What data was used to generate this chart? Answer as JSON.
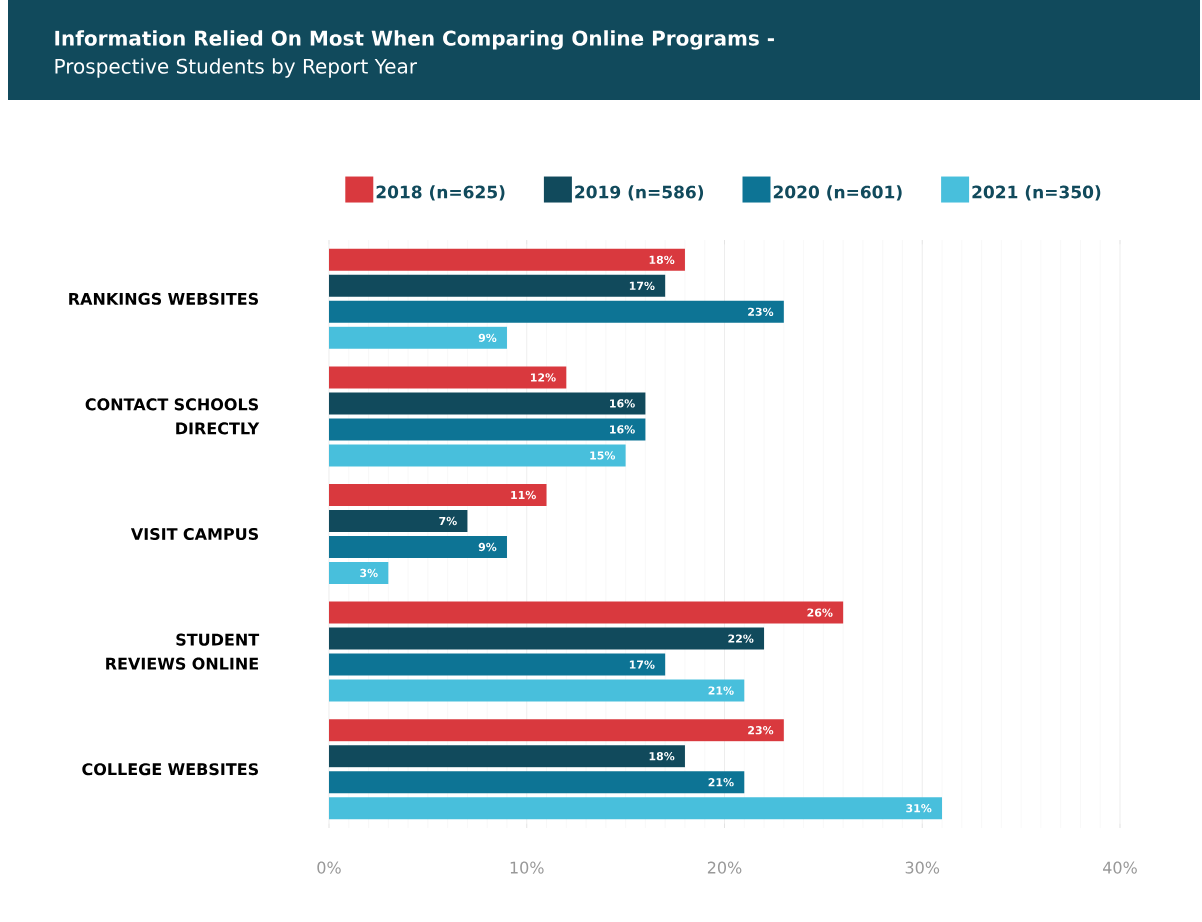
{
  "chart_data": {
    "type": "bar",
    "orientation": "horizontal",
    "title": "Information Relied On Most When Comparing Online Programs  -",
    "subtitle": "Prospective Students by Report Year",
    "categories": [
      "RANKINGS WEBSITES",
      "CONTACT SCHOOLS DIRECTLY",
      "VISIT CAMPUS",
      "STUDENT REVIEWS ONLINE",
      "COLLEGE WEBSITES"
    ],
    "series": [
      {
        "name": "2018 (n=625)",
        "color": "#d9393e",
        "values": [
          18,
          12,
          11,
          26,
          23
        ],
        "value_labels": [
          "18%",
          "12%",
          "11%",
          "26%",
          "23%"
        ]
      },
      {
        "name": "2019 (n=586)",
        "color": "#114a5c",
        "values": [
          17,
          16,
          7,
          22,
          18
        ],
        "value_labels": [
          "17%",
          "16%",
          "7%",
          "22%",
          "18%"
        ]
      },
      {
        "name": "2020 (n=601)",
        "color": "#0d7495",
        "values": [
          23,
          16,
          9,
          17,
          21
        ],
        "value_labels": [
          "23%",
          "16%",
          "9%",
          "17%",
          "21%"
        ]
      },
      {
        "name": "2021 (n=350)",
        "color": "#48bfdc",
        "values": [
          9,
          15,
          3,
          21,
          31
        ],
        "value_labels": [
          "9%",
          "15%",
          "3%",
          "21%",
          "31%"
        ]
      }
    ],
    "xlim": [
      0,
      40
    ],
    "xticks": [
      {
        "value": 0,
        "label": "0%"
      },
      {
        "value": 10,
        "label": "10%"
      },
      {
        "value": 20,
        "label": "20%"
      },
      {
        "value": 30,
        "label": "30%"
      },
      {
        "value": 40,
        "label": "40%"
      }
    ],
    "grid": "x",
    "legend": "top"
  }
}
